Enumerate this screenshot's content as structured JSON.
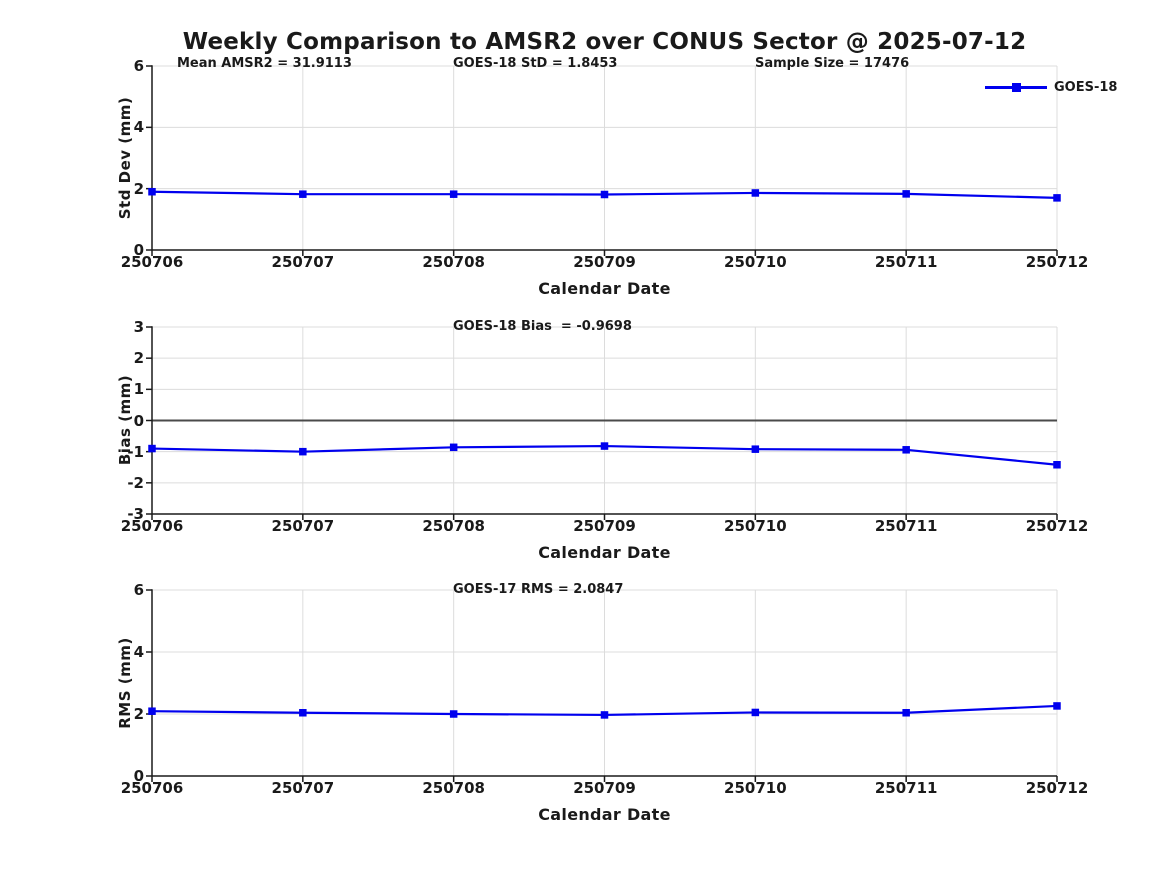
{
  "page": {
    "title": "Weekly Comparison to AMSR2 over CONUS Sector @ 2025-07-12"
  },
  "colors": {
    "line": "#0000EE",
    "grid": "#DCDCDC",
    "axis": "#1A1A1A",
    "zero_line": "#4A4A4A",
    "text": "#1A1A1A",
    "background": "#FFFFFF"
  },
  "legend": {
    "label": "GOES-18",
    "position": "top-right"
  },
  "chart_data": [
    {
      "type": "line",
      "categories": [
        "250706",
        "250707",
        "250708",
        "250709",
        "250710",
        "250711",
        "250712"
      ],
      "series": [
        {
          "name": "GOES-18",
          "values": [
            1.9,
            1.82,
            1.82,
            1.81,
            1.86,
            1.83,
            1.7
          ]
        }
      ],
      "xlabel": "Calendar Date",
      "ylabel": "Std Dev (mm)",
      "ylim": [
        0,
        6
      ],
      "yticks": [
        0,
        2,
        4,
        6
      ],
      "grid": true,
      "zero_line": false,
      "annotations": [
        {
          "text": "Mean AMSR2 = 31.9113"
        },
        {
          "text": "GOES-18 StD = 1.8453"
        },
        {
          "text": "Sample Size = 17476"
        }
      ]
    },
    {
      "type": "line",
      "categories": [
        "250706",
        "250707",
        "250708",
        "250709",
        "250710",
        "250711",
        "250712"
      ],
      "series": [
        {
          "name": "GOES-18",
          "values": [
            -0.9,
            -1.0,
            -0.86,
            -0.82,
            -0.92,
            -0.94,
            -1.42
          ]
        }
      ],
      "xlabel": "Calendar Date",
      "ylabel": "Bias (mm)",
      "ylim": [
        -3,
        3
      ],
      "yticks": [
        -3,
        -2,
        -1,
        0,
        1,
        2,
        3
      ],
      "grid": true,
      "zero_line": true,
      "annotations": [
        {
          "text": "GOES-18 Bias  = -0.9698"
        }
      ]
    },
    {
      "type": "line",
      "categories": [
        "250706",
        "250707",
        "250708",
        "250709",
        "250710",
        "250711",
        "250712"
      ],
      "series": [
        {
          "name": "GOES-18",
          "values": [
            2.09,
            2.04,
            2.0,
            1.97,
            2.05,
            2.04,
            2.26
          ]
        }
      ],
      "xlabel": "Calendar Date",
      "ylabel": "RMS (mm)",
      "ylim": [
        0,
        6
      ],
      "yticks": [
        0,
        2,
        4,
        6
      ],
      "grid": true,
      "zero_line": false,
      "annotations": [
        {
          "text": "GOES-17 RMS = 2.0847"
        }
      ]
    }
  ]
}
